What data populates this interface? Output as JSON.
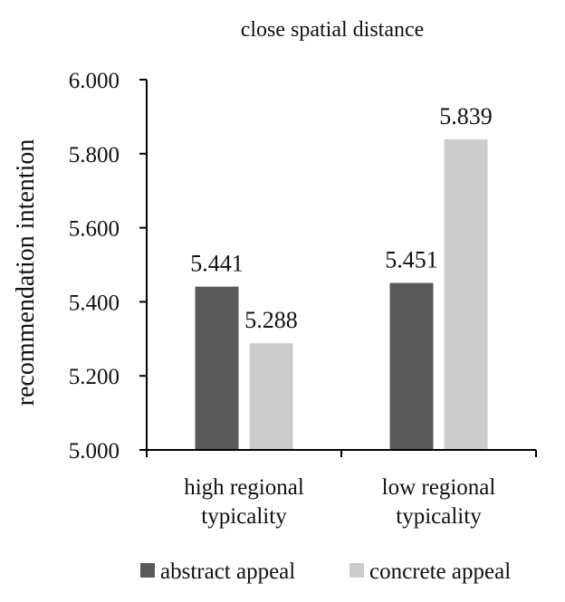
{
  "chart_data": {
    "type": "bar",
    "title": "close spatial distance",
    "ylabel": "recommendation intention",
    "xlabel": "",
    "ylim": [
      5.0,
      6.0
    ],
    "yticks": [
      "5.000",
      "5.200",
      "5.400",
      "5.600",
      "5.800",
      "6.000"
    ],
    "categories": [
      [
        "high regional",
        "typicality"
      ],
      [
        "low regional",
        "typicality"
      ]
    ],
    "series": [
      {
        "name": "abstract appeal",
        "color": "#595959",
        "values": [
          5.441,
          5.451
        ],
        "labels": [
          "5.441",
          "5.451"
        ]
      },
      {
        "name": "concrete appeal",
        "color": "#cccccc",
        "values": [
          5.288,
          5.839
        ],
        "labels": [
          "5.288",
          "5.839"
        ]
      }
    ],
    "grid": false,
    "legend": "bottom"
  }
}
